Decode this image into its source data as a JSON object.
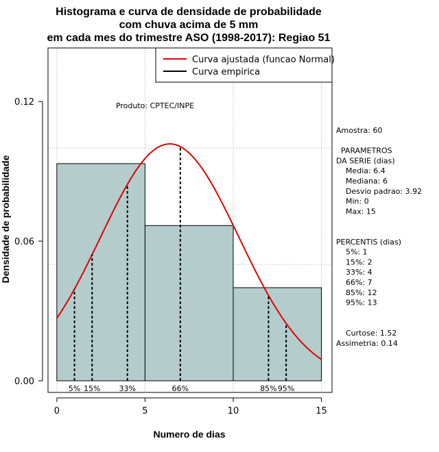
{
  "chart_data": {
    "type": "histogram",
    "title_lines": [
      "Histograma e curva de densidade de probabilidade",
      "com chuva acima de 5 mm",
      "em cada mes do trimestre ASO (1998-2017): Regiao 51"
    ],
    "xlabel": "Numero de dias",
    "ylabel": "Densidade de probabilidade",
    "xlim": [
      -0.5,
      15.6
    ],
    "ylim": [
      -0.005,
      0.143
    ],
    "x_ticks": [
      0,
      5,
      10,
      15
    ],
    "y_ticks": [
      0.0,
      0.06,
      0.12
    ],
    "y_tick_labels": [
      "0.00",
      "0.06",
      "0.12"
    ],
    "grid": true,
    "x_grid": [
      0,
      5,
      10,
      15
    ],
    "y_grid": [
      0.05,
      0.1
    ],
    "bins": [
      {
        "start": 0,
        "end": 5,
        "density": 0.0933
      },
      {
        "start": 5,
        "end": 10,
        "density": 0.0667
      },
      {
        "start": 10,
        "end": 15,
        "density": 0.04
      }
    ],
    "bar_color": "#b4cccc",
    "curve_color": "#e00000",
    "normal_curve": {
      "mean": 6.4,
      "sd": 3.92,
      "from": 0,
      "to": 15
    },
    "percentile_lines": [
      {
        "x": 1,
        "label": "5%"
      },
      {
        "x": 2,
        "label": "15%"
      },
      {
        "x": 4,
        "label": "33%"
      },
      {
        "x": 7,
        "label": "66%"
      },
      {
        "x": 12,
        "label": "85%"
      },
      {
        "x": 13,
        "label": "95%"
      }
    ],
    "legend": {
      "position": "top-right",
      "entries": [
        {
          "label": "Curva ajustada (funcao Normal)",
          "color": "#e00000"
        },
        {
          "label": "Curva empirica",
          "color": "#000000"
        }
      ]
    },
    "annotation": "Produto: CPTEC/INPE",
    "side_panel": [
      "Amostra: 60",
      "",
      " PARAMETROS",
      "DA SERIE (dias)",
      "  Media: 6.4",
      "  Mediana: 6",
      "  Desvio padrao: 3.92",
      "  Min: 0",
      "  Max: 15",
      "",
      "",
      "PERCENTIS (dias)",
      "  5%: 1",
      "  15%: 2",
      "  33%: 4",
      "  66%: 7",
      "  85%: 12",
      "  95%: 13",
      "",
      "",
      "  Curtose: 1.52",
      "Assimetria: 0.14"
    ]
  }
}
